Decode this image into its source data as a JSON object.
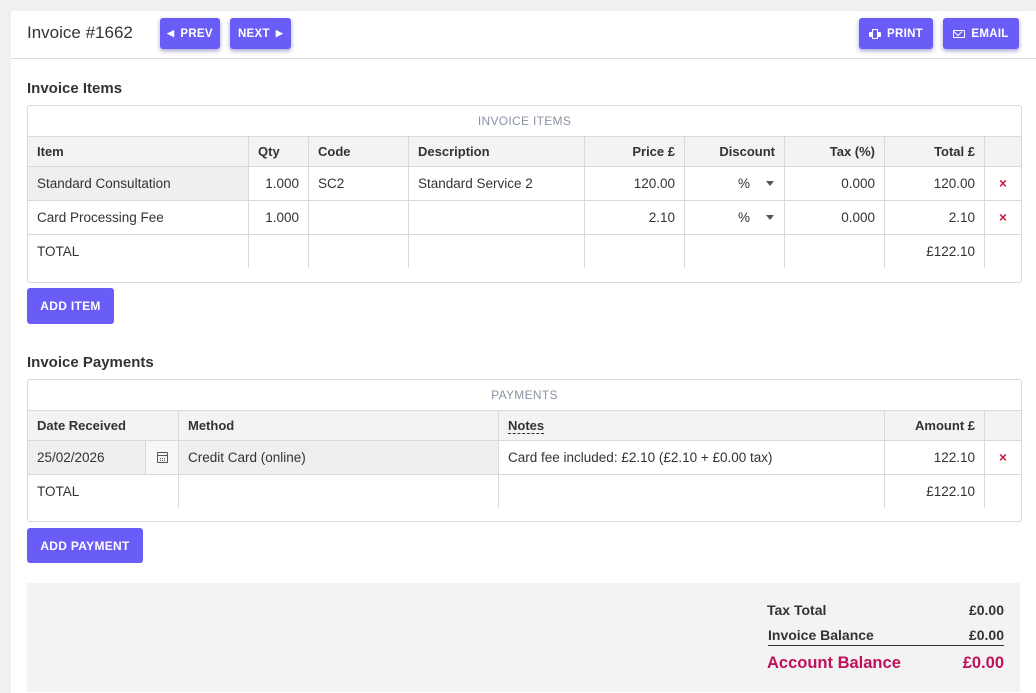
{
  "header": {
    "title": "Invoice #1662",
    "prev_label": "PREV",
    "next_label": "NEXT",
    "print_label": "PRINT",
    "email_label": "EMAIL"
  },
  "items_section": {
    "title": "Invoice Items",
    "caption": "INVOICE ITEMS",
    "columns": [
      "Item",
      "Qty",
      "Code",
      "Description",
      "Price £",
      "Discount",
      "Tax (%)",
      "Total £"
    ],
    "rows": [
      {
        "item": "Standard Consultation",
        "qty": "1.000",
        "code": "SC2",
        "description": "Standard Service 2",
        "price": "120.00",
        "discount": "%",
        "tax": "0.000",
        "total": "120.00",
        "delete": "×"
      },
      {
        "item": "Card Processing Fee",
        "qty": "1.000",
        "code": "",
        "description": "",
        "price": "2.10",
        "discount": "%",
        "tax": "0.000",
        "total": "2.10",
        "delete": "×"
      }
    ],
    "total_label": "TOTAL",
    "total_value": "£122.10",
    "add_label": "ADD ITEM"
  },
  "payments_section": {
    "title": "Invoice Payments",
    "caption": "PAYMENTS",
    "columns": [
      "Date Received",
      "Method",
      "Notes",
      "Amount £"
    ],
    "rows": [
      {
        "date": "25/02/2026",
        "method": "Credit Card (online)",
        "notes": "Card fee included: £2.10 (£2.10 + £0.00 tax)",
        "amount": "122.10",
        "delete": "×"
      }
    ],
    "total_label": "TOTAL",
    "total_value": "£122.10",
    "add_label": "ADD PAYMENT"
  },
  "summary": {
    "tax_total_label": "Tax Total",
    "tax_total_value": "£0.00",
    "invoice_balance_label": "Invoice Balance",
    "invoice_balance_value": "£0.00",
    "account_balance_label": "Account Balance",
    "account_balance_value": "£0.00"
  },
  "colors": {
    "accent": "#6a5cf6",
    "danger": "#cc1a3c",
    "balance": "#c0105a"
  },
  "icons": {
    "prev": "caret-left-icon",
    "next": "caret-right-icon",
    "print": "printer-icon",
    "email": "envelope-icon",
    "delete": "close-icon",
    "dropdown": "caret-down-icon",
    "date": "calendar-icon"
  }
}
